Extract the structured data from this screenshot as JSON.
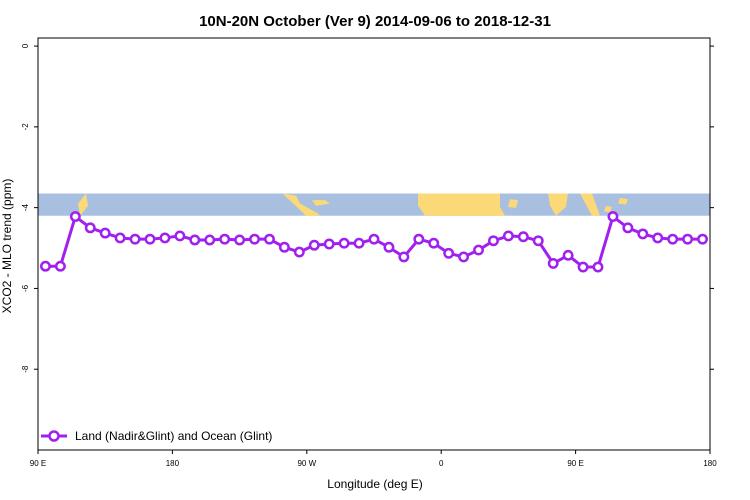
{
  "chart_data": {
    "type": "line",
    "title": "10N-20N October (Ver 9)   2014-09-06 to 2018-12-31",
    "xlabel": "Longitude (deg E)",
    "ylabel": "XCO2 - MLO trend (ppm)",
    "xlim": [
      90,
      540
    ],
    "ylim": [
      -10,
      0.2
    ],
    "x_ticks": [
      {
        "value": 90,
        "label": "90 E"
      },
      {
        "value": 180,
        "label": "180"
      },
      {
        "value": 270,
        "label": "90 W"
      },
      {
        "value": 360,
        "label": "0"
      },
      {
        "value": 450,
        "label": "90 E"
      },
      {
        "value": 540,
        "label": "180"
      }
    ],
    "y_ticks": [
      0,
      -2,
      -4,
      -6,
      -8
    ],
    "map_strip": {
      "y_top": -3.65,
      "y_bottom": -4.2,
      "ocean_color": "#a8bfe0",
      "land_color": "#fbd977"
    },
    "legend": {
      "position": "bottom-left"
    },
    "series": [
      {
        "name": "Land (Nadir&Glint) and Ocean (Glint)",
        "color": "#a020f0",
        "x": [
          95,
          105,
          115,
          125,
          135,
          145,
          155,
          165,
          175,
          185,
          195,
          205,
          215,
          225,
          235,
          245,
          255,
          265,
          275,
          285,
          295,
          305,
          315,
          325,
          335,
          345,
          355,
          365,
          375,
          385,
          395,
          405,
          415,
          425,
          435,
          445,
          455,
          465,
          475,
          485,
          495,
          505,
          515,
          525,
          535
        ],
        "y": [
          -5.45,
          -5.45,
          -4.22,
          -4.5,
          -4.63,
          -4.75,
          -4.78,
          -4.78,
          -4.75,
          -4.7,
          -4.8,
          -4.8,
          -4.78,
          -4.8,
          -4.78,
          -4.78,
          -4.98,
          -5.1,
          -4.93,
          -4.9,
          -4.88,
          -4.88,
          -4.78,
          -4.98,
          -5.22,
          -4.78,
          -4.88,
          -5.13,
          -5.22,
          -5.05,
          -4.82,
          -4.7,
          -4.72,
          -4.82,
          -5.38,
          -5.18,
          -5.47,
          -5.47,
          -4.22,
          -4.5,
          -4.65,
          -4.75,
          -4.78,
          -4.78,
          -4.78
        ]
      }
    ]
  }
}
